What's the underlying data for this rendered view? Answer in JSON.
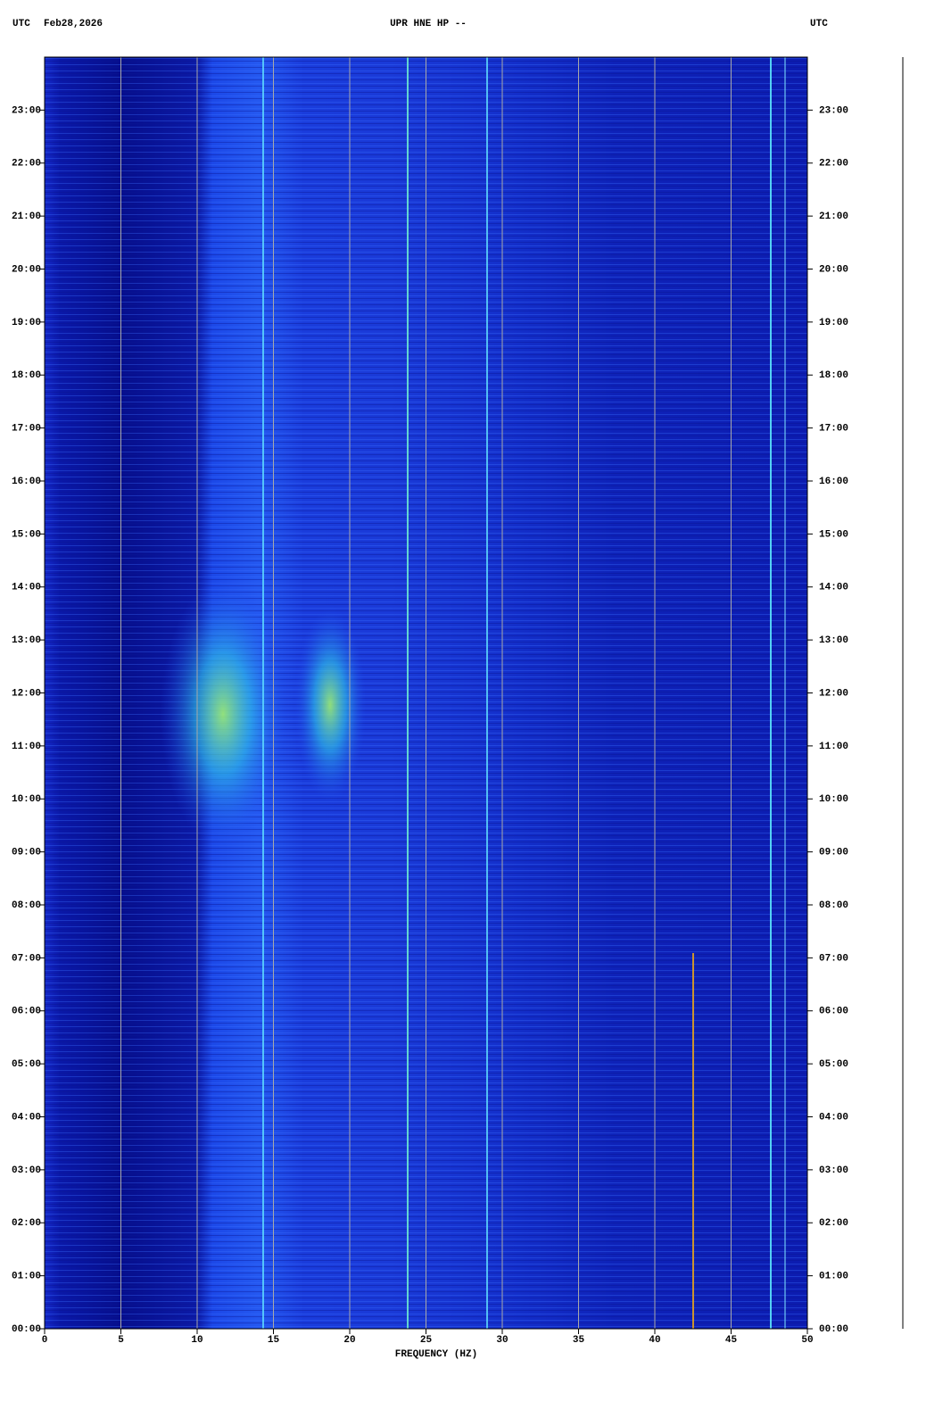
{
  "chart_data": {
    "type": "spectrogram",
    "header_left": "UTC",
    "date": "Feb28,2026",
    "title": "UPR HNE HP --",
    "header_right": "UTC",
    "xlabel": "FREQUENCY (HZ)",
    "xlim": [
      0,
      50
    ],
    "xticks": [
      0,
      5,
      10,
      15,
      20,
      25,
      30,
      35,
      40,
      45,
      50
    ],
    "ylim": [
      0,
      24
    ],
    "yticks": [
      {
        "value": 0,
        "label": "00:00"
      },
      {
        "value": 1,
        "label": "01:00"
      },
      {
        "value": 2,
        "label": "02:00"
      },
      {
        "value": 3,
        "label": "03:00"
      },
      {
        "value": 4,
        "label": "04:00"
      },
      {
        "value": 5,
        "label": "05:00"
      },
      {
        "value": 6,
        "label": "06:00"
      },
      {
        "value": 7,
        "label": "07:00"
      },
      {
        "value": 8,
        "label": "08:00"
      },
      {
        "value": 9,
        "label": "09:00"
      },
      {
        "value": 10,
        "label": "10:00"
      },
      {
        "value": 11,
        "label": "11:00"
      },
      {
        "value": 12,
        "label": "12:00"
      },
      {
        "value": 13,
        "label": "13:00"
      },
      {
        "value": 14,
        "label": "14:00"
      },
      {
        "value": 15,
        "label": "15:00"
      },
      {
        "value": 16,
        "label": "16:00"
      },
      {
        "value": 17,
        "label": "17:00"
      },
      {
        "value": 18,
        "label": "18:00"
      },
      {
        "value": 19,
        "label": "19:00"
      },
      {
        "value": 20,
        "label": "20:00"
      },
      {
        "value": 21,
        "label": "21:00"
      },
      {
        "value": 22,
        "label": "22:00"
      },
      {
        "value": 23,
        "label": "23:00"
      }
    ],
    "grid": true
  }
}
